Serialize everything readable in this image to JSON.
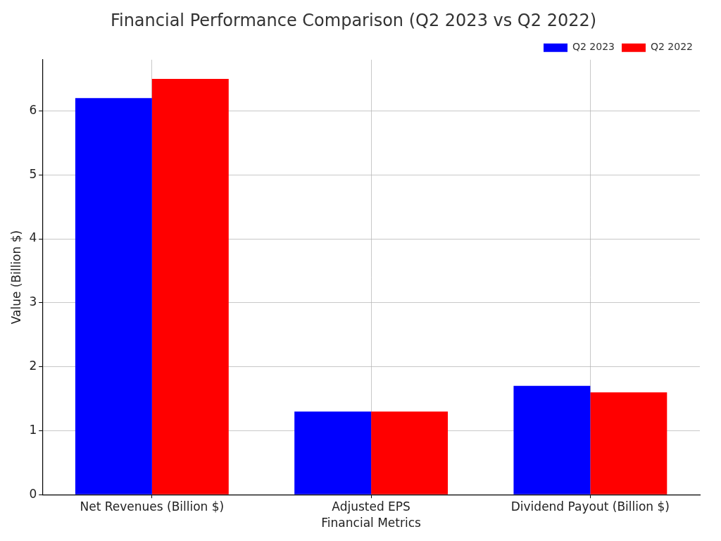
{
  "chart_data": {
    "type": "bar",
    "title": "Financial Performance Comparison (Q2 2023 vs Q2 2022)",
    "x_label": "Financial Metrics",
    "y_label": "Value (Billion $)",
    "categories": [
      "Net Revenues (Billion $)",
      "Adjusted EPS",
      "Dividend Payout (Billion $)"
    ],
    "series": [
      {
        "name": "Q2 2023",
        "color": "#0000ff",
        "values": [
          6.2,
          1.3,
          1.7
        ]
      },
      {
        "name": "Q2 2022",
        "color": "#ff0000",
        "values": [
          6.5,
          1.3,
          1.6
        ]
      }
    ],
    "ylim": [
      0,
      6.8
    ],
    "yticks": [
      0,
      1,
      2,
      3,
      4,
      5,
      6
    ],
    "grid": true,
    "legend": "upper right"
  }
}
